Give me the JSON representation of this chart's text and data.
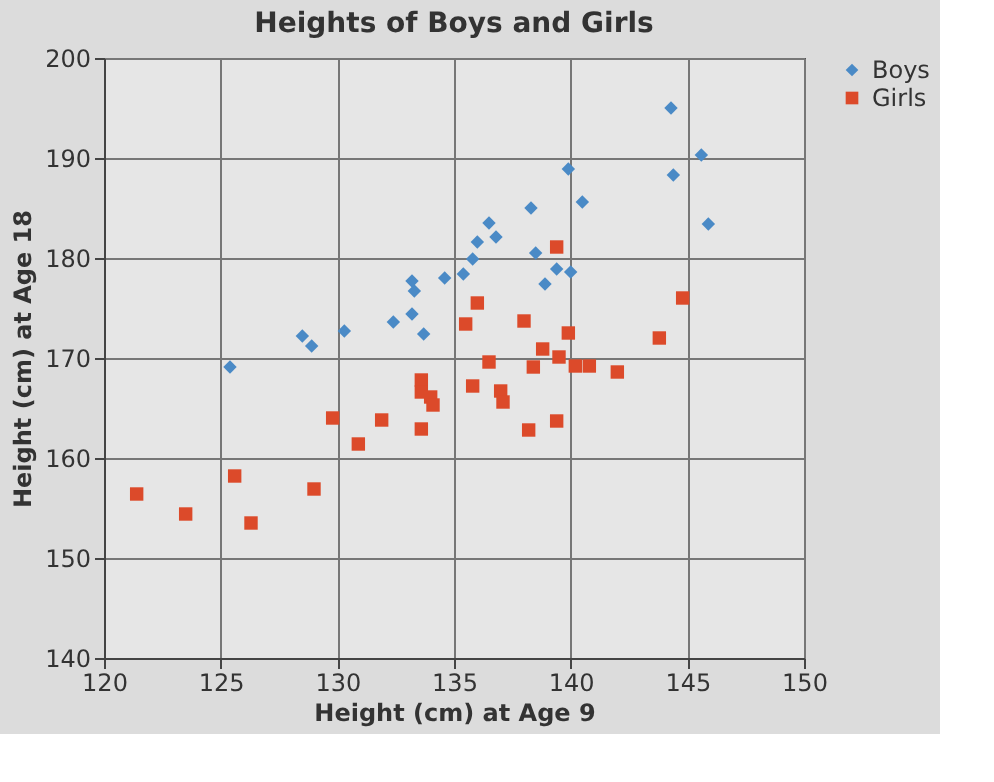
{
  "chart_data": {
    "type": "scatter",
    "title": "Heights of Boys and Girls",
    "xlabel": "Height (cm) at Age 9",
    "ylabel": "Height (cm) at Age 18",
    "xlim": [
      120,
      150
    ],
    "xticks": [
      120,
      125,
      130,
      135,
      140,
      145,
      150
    ],
    "ylim": [
      140,
      200
    ],
    "yticks": [
      140,
      150,
      160,
      170,
      180,
      190,
      200
    ],
    "grid": true,
    "legend": "right",
    "series": [
      {
        "name": "Boys",
        "color": "#4a8ac6",
        "marker": "diamond",
        "x": [
          125.4,
          128.5,
          128.9,
          130.3,
          132.4,
          133.2,
          133.3,
          133.2,
          133.7,
          134.6,
          135.4,
          135.8,
          136.0,
          136.5,
          136.8,
          138.3,
          138.5,
          138.9,
          139.4,
          139.9,
          140.0,
          140.5,
          144.3,
          144.4,
          145.6,
          145.9
        ],
        "values": [
          169.1,
          172.2,
          171.2,
          172.7,
          173.6,
          177.7,
          176.7,
          174.4,
          172.4,
          178.0,
          178.4,
          179.9,
          181.6,
          183.5,
          182.1,
          185.0,
          180.5,
          177.4,
          178.9,
          188.9,
          178.6,
          185.6,
          195.0,
          188.3,
          190.3,
          183.4
        ]
      },
      {
        "name": "Girls",
        "color": "#dc4a2a",
        "marker": "square",
        "x": [
          121.4,
          123.5,
          125.6,
          126.3,
          129.0,
          129.8,
          130.9,
          131.9,
          133.6,
          133.6,
          134.0,
          134.1,
          133.6,
          135.5,
          136.0,
          135.8,
          136.5,
          137.0,
          137.1,
          138.0,
          138.4,
          138.2,
          138.8,
          139.5,
          139.4,
          139.4,
          139.9,
          140.2,
          140.8,
          142.0,
          143.8,
          144.8
        ],
        "values": [
          156.4,
          154.4,
          158.2,
          153.5,
          156.9,
          164.0,
          161.4,
          163.8,
          167.8,
          166.6,
          166.1,
          165.3,
          162.9,
          173.4,
          175.5,
          167.2,
          169.6,
          166.7,
          165.6,
          173.7,
          169.1,
          162.8,
          170.9,
          170.1,
          181.1,
          163.7,
          172.5,
          169.2,
          169.2,
          168.6,
          172.0,
          176.0
        ]
      }
    ]
  }
}
